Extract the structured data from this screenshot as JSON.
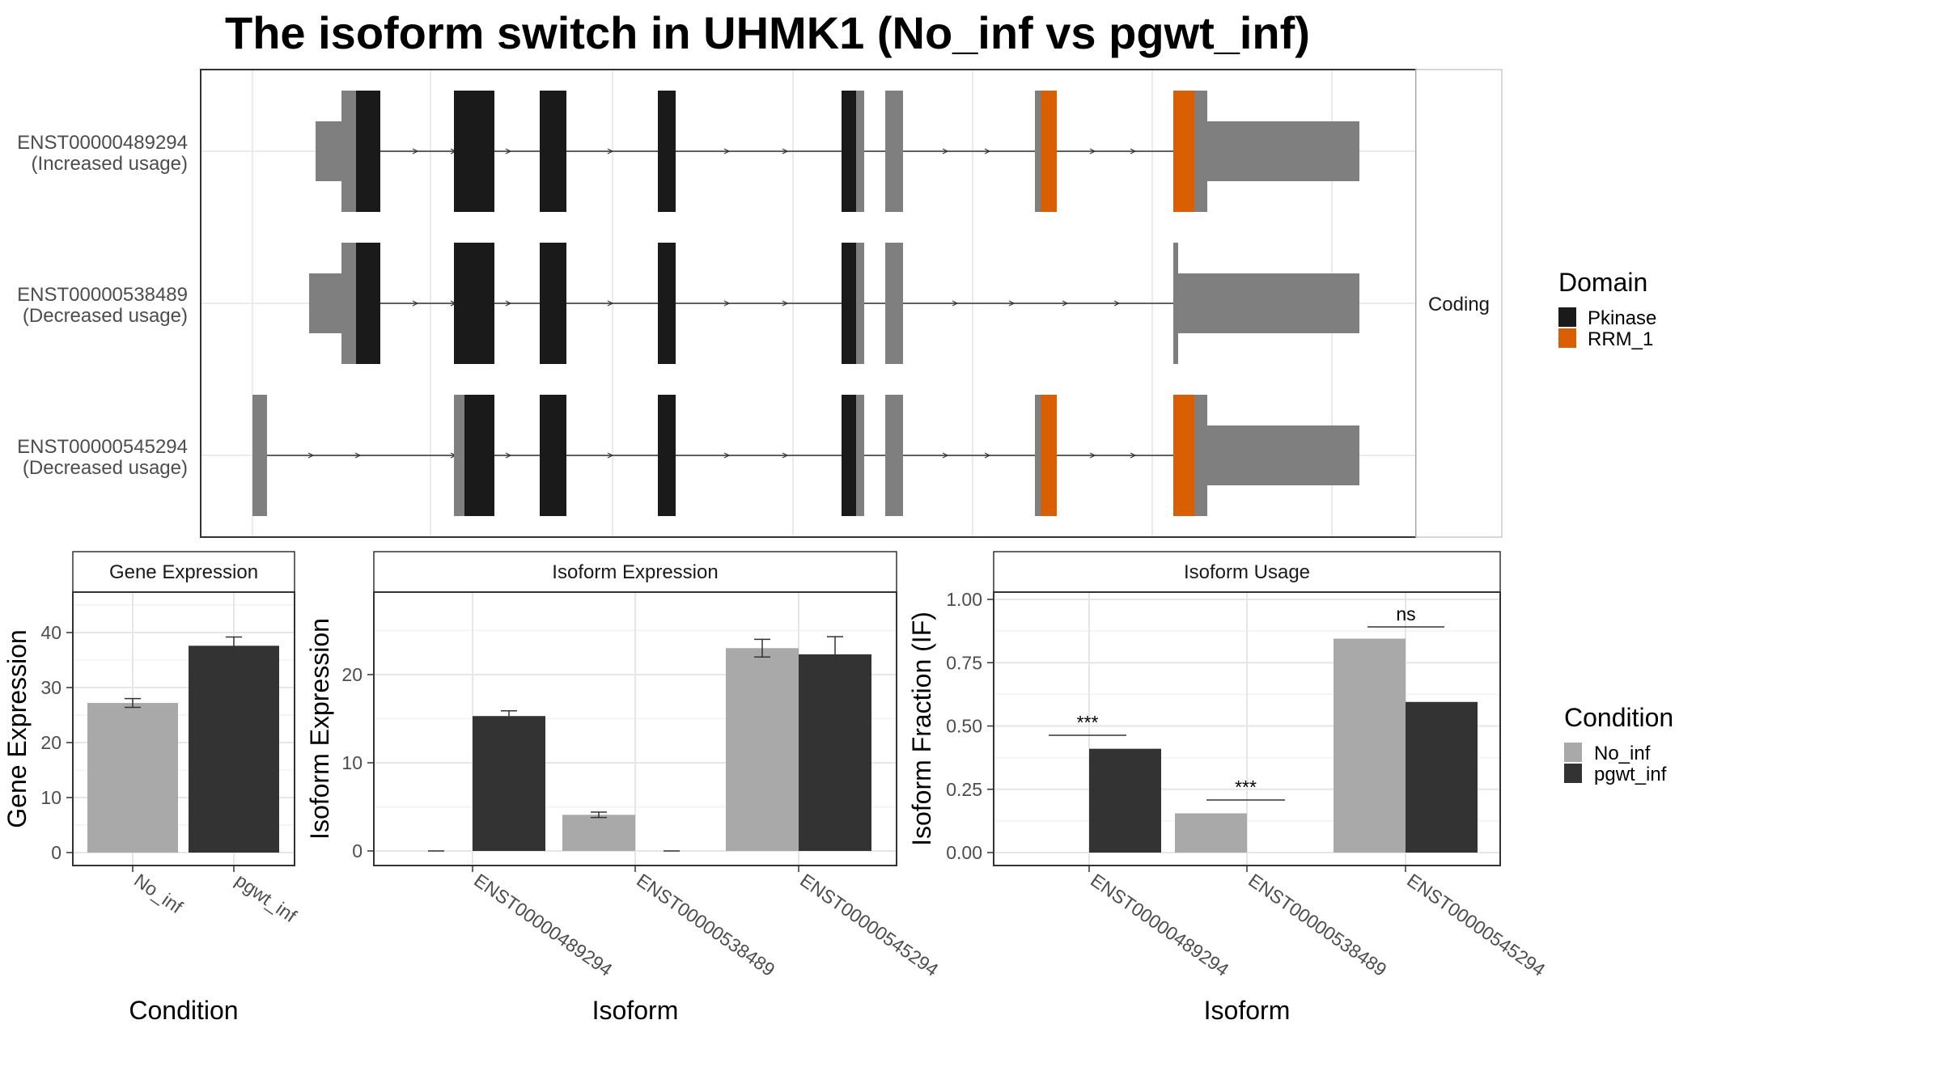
{
  "title": "The isoform switch in UHMK1 (No_inf vs pgwt_inf)",
  "colors": {
    "no_inf": "#a9a9a9",
    "pgwt_inf": "#333333",
    "pkinase": "#1a1a1a",
    "rrm1": "#d95f02",
    "noncoding_exon": "#7f7f7f"
  },
  "chart_data": [
    {
      "type": "gene_structure",
      "strip_label": "Coding",
      "transcripts": [
        {
          "id": "ENST00000489294",
          "usage": "(Increased usage)"
        },
        {
          "id": "ENST00000538489",
          "usage": "(Decreased usage)"
        },
        {
          "id": "ENST00000545294",
          "usage": "(Decreased usage)"
        }
      ],
      "legend": {
        "title": "Domain",
        "entries": [
          {
            "label": "Pkinase",
            "color": "#1a1a1a"
          },
          {
            "label": "RRM_1",
            "color": "#d95f02"
          }
        ]
      }
    },
    {
      "type": "bar",
      "strip": "Gene Expression",
      "xlabel": "Condition",
      "ylabel": "Gene Expression",
      "ylim": [
        0,
        46
      ],
      "yticks": [
        0,
        10,
        20,
        30,
        40
      ],
      "categories": [
        "No_inf",
        "pgwt_inf"
      ],
      "values": [
        27.2,
        37.6
      ],
      "errors": [
        0.8,
        1.6
      ]
    },
    {
      "type": "bar",
      "strip": "Isoform Expression",
      "xlabel": "Isoform",
      "ylabel": "Isoform Expression",
      "ylim": [
        0,
        29
      ],
      "yticks": [
        0,
        10,
        20
      ],
      "categories": [
        "ENST00000489294",
        "ENST00000538489",
        "ENST00000545294"
      ],
      "series": [
        {
          "name": "No_inf",
          "values": [
            0,
            4.1,
            23.0
          ],
          "errors": [
            0,
            0.3,
            1.0
          ]
        },
        {
          "name": "pgwt_inf",
          "values": [
            15.3,
            0,
            22.3
          ],
          "errors": [
            0.6,
            0,
            2.0
          ]
        }
      ]
    },
    {
      "type": "bar",
      "strip": "Isoform Usage",
      "xlabel": "Isoform",
      "ylabel": "Isoform Fraction (IF)",
      "ylim": [
        0,
        1.02
      ],
      "yticks": [
        "0.00",
        "0.25",
        "0.50",
        "0.75",
        "1.00"
      ],
      "categories": [
        "ENST00000489294",
        "ENST00000538489",
        "ENST00000545294"
      ],
      "series": [
        {
          "name": "No_inf",
          "values": [
            0,
            0.155,
            0.845
          ]
        },
        {
          "name": "pgwt_inf",
          "values": [
            0.41,
            0,
            0.595
          ]
        }
      ],
      "significance": [
        "***",
        "***",
        "ns"
      ]
    }
  ],
  "condition_legend": {
    "title": "Condition",
    "entries": [
      {
        "label": "No_inf",
        "color": "#a9a9a9"
      },
      {
        "label": "pgwt_inf",
        "color": "#333333"
      }
    ]
  }
}
